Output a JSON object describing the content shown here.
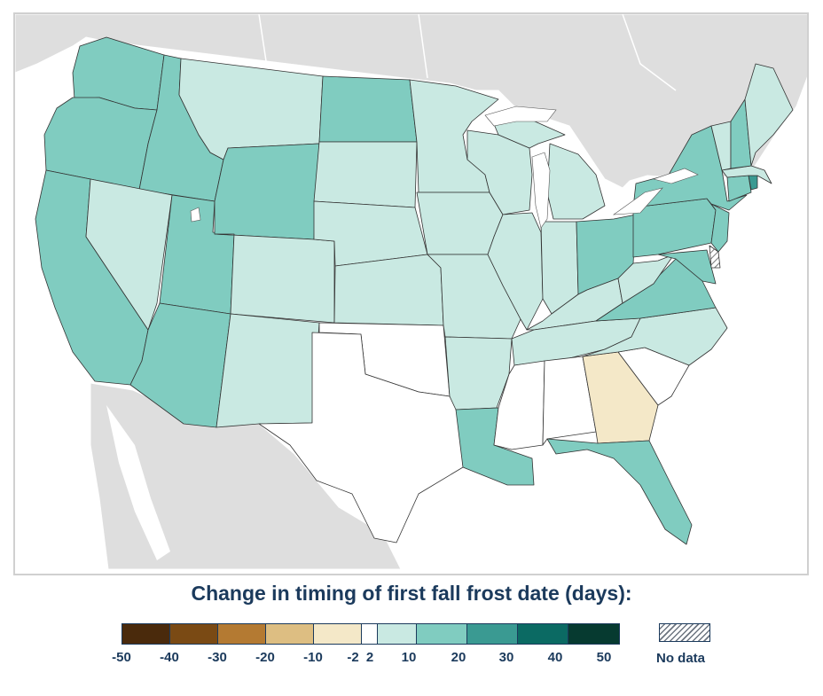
{
  "legend": {
    "title": "Change in timing of first fall frost date (days):",
    "bins": [
      {
        "from": -50,
        "to": -40,
        "color": "#4a2a0c"
      },
      {
        "from": -40,
        "to": -30,
        "color": "#7a4a14"
      },
      {
        "from": -30,
        "to": -20,
        "color": "#b47a32"
      },
      {
        "from": -20,
        "to": -10,
        "color": "#ddbe82"
      },
      {
        "from": -10,
        "to": -2,
        "color": "#f4e8c8"
      },
      {
        "from": -2,
        "to": 2,
        "color": "#ffffff"
      },
      {
        "from": 2,
        "to": 10,
        "color": "#c9e9e2"
      },
      {
        "from": 10,
        "to": 20,
        "color": "#80ccc0"
      },
      {
        "from": 20,
        "to": 30,
        "color": "#3a9a92"
      },
      {
        "from": 30,
        "to": 40,
        "color": "#0b6a63"
      },
      {
        "from": 40,
        "to": 50,
        "color": "#063a30"
      }
    ],
    "tick_labels": [
      "-50",
      "-40",
      "-30",
      "-20",
      "-10",
      "-2",
      "2",
      "10",
      "20",
      "30",
      "40",
      "50"
    ],
    "no_data_label": "No data"
  },
  "map": {
    "land_color": "#dedede",
    "border_color": "#ffffff",
    "state_line_color": "#333333",
    "states": [
      {
        "name": "Washington",
        "bin": "10-20"
      },
      {
        "name": "Oregon",
        "bin": "10-20"
      },
      {
        "name": "California",
        "bin": "10-20"
      },
      {
        "name": "Idaho",
        "bin": "10-20"
      },
      {
        "name": "Nevada",
        "bin": "2-10"
      },
      {
        "name": "Utah",
        "bin": "10-20"
      },
      {
        "name": "Arizona",
        "bin": "10-20"
      },
      {
        "name": "Montana",
        "bin": "2-10"
      },
      {
        "name": "Wyoming",
        "bin": "10-20"
      },
      {
        "name": "Colorado",
        "bin": "2-10"
      },
      {
        "name": "New Mexico",
        "bin": "2-10"
      },
      {
        "name": "North Dakota",
        "bin": "10-20"
      },
      {
        "name": "South Dakota",
        "bin": "2-10"
      },
      {
        "name": "Nebraska",
        "bin": "2-10"
      },
      {
        "name": "Kansas",
        "bin": "2-10"
      },
      {
        "name": "Oklahoma",
        "bin": "-2-2"
      },
      {
        "name": "Texas",
        "bin": "-2-2"
      },
      {
        "name": "Minnesota",
        "bin": "2-10"
      },
      {
        "name": "Iowa",
        "bin": "2-10"
      },
      {
        "name": "Missouri",
        "bin": "2-10"
      },
      {
        "name": "Arkansas",
        "bin": "2-10"
      },
      {
        "name": "Louisiana",
        "bin": "10-20"
      },
      {
        "name": "Wisconsin",
        "bin": "2-10"
      },
      {
        "name": "Illinois",
        "bin": "2-10"
      },
      {
        "name": "Michigan",
        "bin": "2-10"
      },
      {
        "name": "Indiana",
        "bin": "2-10"
      },
      {
        "name": "Ohio",
        "bin": "10-20"
      },
      {
        "name": "Kentucky",
        "bin": "2-10"
      },
      {
        "name": "Tennessee",
        "bin": "2-10"
      },
      {
        "name": "Mississippi",
        "bin": "-2-2"
      },
      {
        "name": "Alabama",
        "bin": "-2-2"
      },
      {
        "name": "Georgia",
        "bin": "-10--2"
      },
      {
        "name": "Florida",
        "bin": "10-20"
      },
      {
        "name": "South Carolina",
        "bin": "-2-2"
      },
      {
        "name": "North Carolina",
        "bin": "2-10"
      },
      {
        "name": "Virginia",
        "bin": "10-20"
      },
      {
        "name": "West Virginia",
        "bin": "2-10"
      },
      {
        "name": "Maryland",
        "bin": "10-20"
      },
      {
        "name": "Delaware",
        "bin": "no data"
      },
      {
        "name": "Pennsylvania",
        "bin": "10-20"
      },
      {
        "name": "New Jersey",
        "bin": "10-20"
      },
      {
        "name": "New York",
        "bin": "10-20"
      },
      {
        "name": "Connecticut",
        "bin": "10-20"
      },
      {
        "name": "Rhode Island",
        "bin": "20-30"
      },
      {
        "name": "Massachusetts",
        "bin": "2-10"
      },
      {
        "name": "Vermont",
        "bin": "2-10"
      },
      {
        "name": "New Hampshire",
        "bin": "10-20"
      },
      {
        "name": "Maine",
        "bin": "2-10"
      }
    ]
  }
}
